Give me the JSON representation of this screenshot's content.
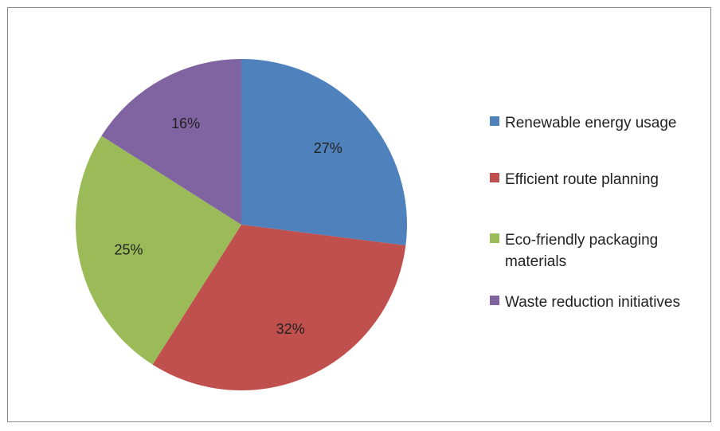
{
  "chart_data": {
    "type": "pie",
    "title": "",
    "slices": [
      {
        "label": "Renewable energy usage",
        "value": 27,
        "display": "27%",
        "color": "#4F81BD"
      },
      {
        "label": "Efficient route planning",
        "value": 32,
        "display": "32%",
        "color": "#C0504D"
      },
      {
        "label": "Eco-friendly packaging materials",
        "value": 25,
        "display": "25%",
        "color": "#9BBB59"
      },
      {
        "label": "Waste reduction initiatives",
        "value": 16,
        "display": "16%",
        "color": "#8064A2"
      }
    ],
    "legend_position": "right",
    "start_angle": "12 o'clock",
    "direction": "clockwise"
  }
}
